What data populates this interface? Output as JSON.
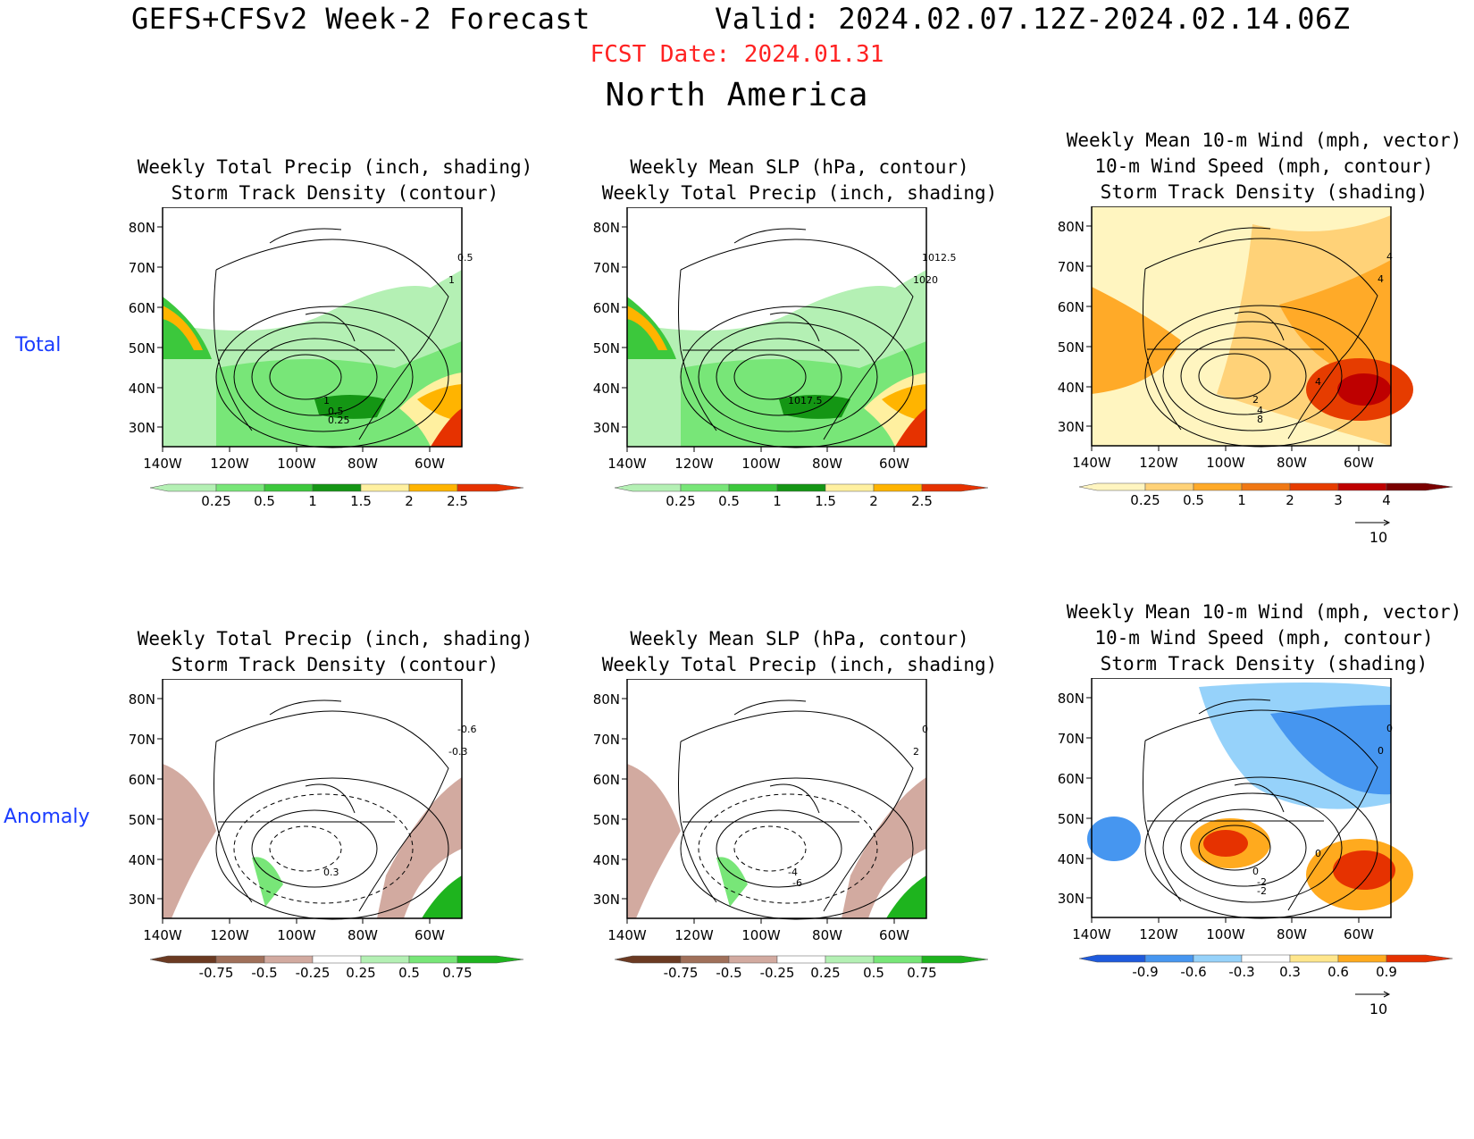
{
  "header": {
    "title": "GEFS+CFSv2 Week-2 Forecast",
    "valid": "Valid: 2024.02.07.12Z-2024.02.14.06Z",
    "fcst_date": "FCST Date: 2024.01.31",
    "region": "North America"
  },
  "rows": {
    "total": "Total",
    "anomaly": "Anomaly"
  },
  "colors": {
    "fcst": "#ff2222",
    "row_label": "#1a3cff"
  },
  "axes": {
    "lat_labels": [
      "80N",
      "70N",
      "60N",
      "50N",
      "40N",
      "30N"
    ],
    "lon_labels": [
      "140W",
      "120W",
      "100W",
      "80W",
      "60W"
    ]
  },
  "panels": {
    "total_precip": {
      "title1": "Weekly Total Precip (inch, shading)",
      "title2": "Storm Track Density (contour)",
      "colorbar": [
        "0.25",
        "0.5",
        "1",
        "1.5",
        "2",
        "2.5"
      ],
      "contour_labels": [
        "0.5",
        "1",
        "1",
        "0.5",
        "0.25"
      ]
    },
    "total_slp": {
      "title1": "Weekly Mean SLP (hPa, contour)",
      "title2": "Weekly Total Precip (inch, shading)",
      "colorbar": [
        "0.25",
        "0.5",
        "1",
        "1.5",
        "2",
        "2.5"
      ],
      "contour_labels": [
        "1012.5",
        "1020",
        "1017.5"
      ]
    },
    "total_wind": {
      "title1": "Weekly Mean 10-m Wind (mph, vector)",
      "title2": "10-m Wind Speed (mph, contour)",
      "title3": "Storm Track Density (shading)",
      "colorbar": [
        "0.25",
        "0.5",
        "1",
        "2",
        "3",
        "4"
      ],
      "contour_labels": [
        "4",
        "4",
        "2",
        "4",
        "8",
        "4"
      ],
      "vector_ref": "10"
    },
    "anom_precip": {
      "title1": "Weekly Total Precip (inch, shading)",
      "title2": "Storm Track Density (contour)",
      "colorbar": [
        "-0.75",
        "-0.5",
        "-0.25",
        "0.25",
        "0.5",
        "0.75"
      ],
      "contour_labels": [
        "-0.6",
        "-0.3",
        "0.3"
      ]
    },
    "anom_slp": {
      "title1": "Weekly Mean SLP (hPa, contour)",
      "title2": "Weekly Total Precip (inch, shading)",
      "colorbar": [
        "-0.75",
        "-0.5",
        "-0.25",
        "0.25",
        "0.5",
        "0.75"
      ],
      "contour_labels": [
        "0",
        "2",
        "-4",
        "-6"
      ]
    },
    "anom_wind": {
      "title1": "Weekly Mean 10-m Wind (mph, vector)",
      "title2": "10-m Wind Speed (mph, contour)",
      "title3": "Storm Track Density (shading)",
      "colorbar": [
        "-0.9",
        "-0.6",
        "-0.3",
        "0.3",
        "0.6",
        "0.9"
      ],
      "contour_labels": [
        "0",
        "0",
        "0",
        "-2",
        "-2",
        "0"
      ],
      "vector_ref": "10"
    }
  }
}
